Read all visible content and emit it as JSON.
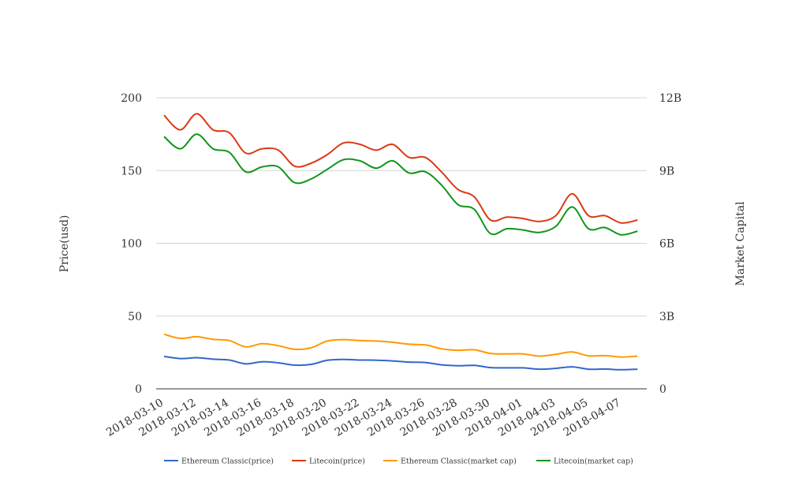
{
  "chart_data": {
    "type": "line",
    "x": [
      "2018-03-10",
      "2018-03-11",
      "2018-03-12",
      "2018-03-13",
      "2018-03-14",
      "2018-03-15",
      "2018-03-16",
      "2018-03-17",
      "2018-03-18",
      "2018-03-19",
      "2018-03-20",
      "2018-03-21",
      "2018-03-22",
      "2018-03-23",
      "2018-03-24",
      "2018-03-25",
      "2018-03-26",
      "2018-03-27",
      "2018-03-28",
      "2018-03-29",
      "2018-03-30",
      "2018-03-31",
      "2018-04-01",
      "2018-04-02",
      "2018-04-03",
      "2018-04-04",
      "2018-04-05",
      "2018-04-06",
      "2018-04-07",
      "2018-04-08"
    ],
    "x_tick_labels": [
      "2018-03-10",
      "2018-03-12",
      "2018-03-14",
      "2018-03-16",
      "2018-03-18",
      "2018-03-20",
      "2018-03-22",
      "2018-03-24",
      "2018-03-26",
      "2018-03-28",
      "2018-03-30",
      "2018-04-01",
      "2018-04-03",
      "2018-04-05",
      "2018-04-07"
    ],
    "ylabel_left": "Price(usd)",
    "ylabel_right": "Market Capital",
    "ylim_left": [
      0,
      200
    ],
    "ylim_right": [
      0,
      12000000000
    ],
    "y_ticks_left": [
      "0",
      "50",
      "100",
      "150",
      "200"
    ],
    "y_ticks_right": [
      "0",
      "3B",
      "6B",
      "9B",
      "12B"
    ],
    "grid": true,
    "legend_position": "bottom",
    "series": [
      {
        "name": "Ethereum Classic(price)",
        "axis": "left",
        "color": "#3366cc",
        "values": [
          22.3,
          20.8,
          21.4,
          20.4,
          19.8,
          17.2,
          18.6,
          17.9,
          16.3,
          16.8,
          19.6,
          20.2,
          19.8,
          19.7,
          19.2,
          18.4,
          18.1,
          16.5,
          15.9,
          16.1,
          14.6,
          14.4,
          14.4,
          13.5,
          14.1,
          15.1,
          13.5,
          13.6,
          13.1,
          13.5
        ]
      },
      {
        "name": "Litecoin(price)",
        "axis": "left",
        "color": "#dc3912",
        "values": [
          188,
          178,
          189,
          178,
          176,
          162,
          165,
          164,
          153,
          155,
          161,
          169,
          168,
          164,
          168,
          159,
          159,
          149,
          137,
          132,
          116,
          118,
          117,
          115,
          119,
          134,
          119,
          119,
          114,
          116
        ]
      },
      {
        "name": "Ethereum Classic(market cap)",
        "axis": "right",
        "color": "#ff9900",
        "values": [
          2250000000,
          2080000000,
          2150000000,
          2040000000,
          1990000000,
          1730000000,
          1860000000,
          1780000000,
          1630000000,
          1690000000,
          1970000000,
          2030000000,
          1990000000,
          1970000000,
          1920000000,
          1840000000,
          1810000000,
          1650000000,
          1590000000,
          1610000000,
          1460000000,
          1440000000,
          1440000000,
          1350000000,
          1420000000,
          1520000000,
          1360000000,
          1370000000,
          1310000000,
          1350000000
        ]
      },
      {
        "name": "Litecoin(market cap)",
        "axis": "right",
        "color": "#109618",
        "values": [
          10400000000,
          9900000000,
          10500000000,
          9900000000,
          9750000000,
          8950000000,
          9150000000,
          9150000000,
          8500000000,
          8650000000,
          9050000000,
          9450000000,
          9400000000,
          9100000000,
          9400000000,
          8900000000,
          8950000000,
          8400000000,
          7600000000,
          7400000000,
          6400000000,
          6600000000,
          6550000000,
          6450000000,
          6700000000,
          7500000000,
          6600000000,
          6650000000,
          6350000000,
          6500000000
        ]
      }
    ]
  }
}
